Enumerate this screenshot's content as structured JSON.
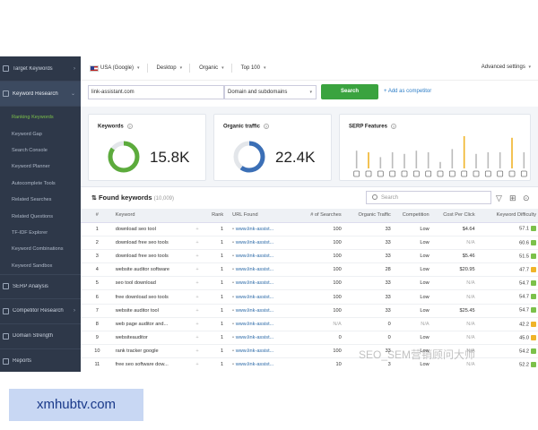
{
  "sidebar": {
    "items_top": [
      {
        "label": "Target Keywords",
        "icon": "target-icon"
      },
      {
        "label": "Keyword Research",
        "icon": "key-icon"
      }
    ],
    "subitems": [
      "Ranking Keywords",
      "Keyword Gap",
      "Search Console",
      "Keyword Planner",
      "Autocomplete Tools",
      "Related Searches",
      "Related Questions",
      "TF-IDF Explorer",
      "Keyword Combinations",
      "Keyword Sandbox"
    ],
    "items_bottom": [
      {
        "label": "SERP Analysis",
        "icon": "serp-icon"
      },
      {
        "label": "Competitor Research",
        "icon": "competitor-icon"
      },
      {
        "label": "Domain Strength",
        "icon": "domain-icon"
      },
      {
        "label": "Reports",
        "icon": "reports-icon"
      }
    ]
  },
  "topbar": {
    "country": "USA (Google)",
    "device": "Desktop",
    "type": "Organic",
    "top": "Top 100",
    "advanced": "Advanced settings"
  },
  "search": {
    "domain_value": "link-assistant.com",
    "scope_value": "Domain and subdomains",
    "search_button": "Search",
    "add_competitor": "+ Add as competitor"
  },
  "cards": {
    "keywords": {
      "title": "Keywords",
      "value": "15.8K",
      "fill": 0.85,
      "color": "#5cab3c"
    },
    "traffic": {
      "title": "Organic traffic",
      "value": "22.4K",
      "fill": 0.6,
      "color": "#3b6fb6"
    },
    "serp": {
      "title": "SERP Features",
      "bar_levels": [
        0.55,
        0.5,
        0.35,
        0.5,
        0.45,
        0.55,
        0.5,
        0.2,
        0.6,
        1.0,
        0.45,
        0.5,
        0.5,
        0.95,
        0.5
      ],
      "bar_colors": [
        "#bbb",
        "#f0b429",
        "#bbb",
        "#bbb",
        "#bbb",
        "#bbb",
        "#bbb",
        "#bbb",
        "#bbb",
        "#f0b429",
        "#bbb",
        "#bbb",
        "#bbb",
        "#f0b429",
        "#bbb"
      ]
    }
  },
  "found": {
    "title": "Found keywords",
    "count": "(10,009)",
    "search_placeholder": "Search"
  },
  "table": {
    "headers": [
      "#",
      "Keyword",
      "Rank",
      "URL Found",
      "# of Searches",
      "Organic Traffic",
      "Competition",
      "Cost Per Click",
      "Keyword Difficulty"
    ],
    "rows": [
      {
        "n": "1",
        "kw": "download seo tool",
        "rank": "1",
        "url": "www.link-assist...",
        "searches": "100",
        "traffic": "33",
        "comp": "Low",
        "cpc": "$4.64",
        "kd": "57.1",
        "kdc": "g"
      },
      {
        "n": "2",
        "kw": "download free seo tools",
        "rank": "1",
        "url": "www.link-assist...",
        "searches": "100",
        "traffic": "33",
        "comp": "Low",
        "cpc": "N/A",
        "kd": "60.6",
        "kdc": "g"
      },
      {
        "n": "3",
        "kw": "download free seo tools",
        "rank": "1",
        "url": "www.link-assist...",
        "searches": "100",
        "traffic": "33",
        "comp": "Low",
        "cpc": "$5.46",
        "kd": "51.5",
        "kdc": "g"
      },
      {
        "n": "4",
        "kw": "website auditor software",
        "rank": "1",
        "url": "www.link-assist...",
        "searches": "100",
        "traffic": "28",
        "comp": "Low",
        "cpc": "$20.95",
        "kd": "47.7",
        "kdc": "y"
      },
      {
        "n": "5",
        "kw": "seo tool download",
        "rank": "1",
        "url": "www.link-assist...",
        "searches": "100",
        "traffic": "33",
        "comp": "Low",
        "cpc": "N/A",
        "kd": "54.7",
        "kdc": "g"
      },
      {
        "n": "6",
        "kw": "free download seo tools",
        "rank": "1",
        "url": "www.link-assist...",
        "searches": "100",
        "traffic": "33",
        "comp": "Low",
        "cpc": "N/A",
        "kd": "54.7",
        "kdc": "g"
      },
      {
        "n": "7",
        "kw": "website auditor tool",
        "rank": "1",
        "url": "www.link-assist...",
        "searches": "100",
        "traffic": "33",
        "comp": "Low",
        "cpc": "$25.45",
        "kd": "54.7",
        "kdc": "g"
      },
      {
        "n": "8",
        "kw": "web page auditor and...",
        "rank": "1",
        "url": "www.link-assist...",
        "searches": "N/A",
        "traffic": "0",
        "comp": "N/A",
        "cpc": "N/A",
        "kd": "42.2",
        "kdc": "y"
      },
      {
        "n": "9",
        "kw": "websiteauditor",
        "rank": "1",
        "url": "www.link-assist...",
        "searches": "0",
        "traffic": "0",
        "comp": "Low",
        "cpc": "N/A",
        "kd": "45.0",
        "kdc": "y"
      },
      {
        "n": "10",
        "kw": "rank tracker google",
        "rank": "1",
        "url": "www.link-assist...",
        "searches": "100",
        "traffic": "33",
        "comp": "Low",
        "cpc": "N/A",
        "kd": "54.2",
        "kdc": "g"
      },
      {
        "n": "11",
        "kw": "free seo software dow...",
        "rank": "1",
        "url": "www.link-assist...",
        "searches": "10",
        "traffic": "3",
        "comp": "Low",
        "cpc": "N/A",
        "kd": "52.2",
        "kdc": "g"
      }
    ]
  },
  "watermark": {
    "text": "SEO_SEM营销顾问大师",
    "site": "xmhubtv.com"
  }
}
